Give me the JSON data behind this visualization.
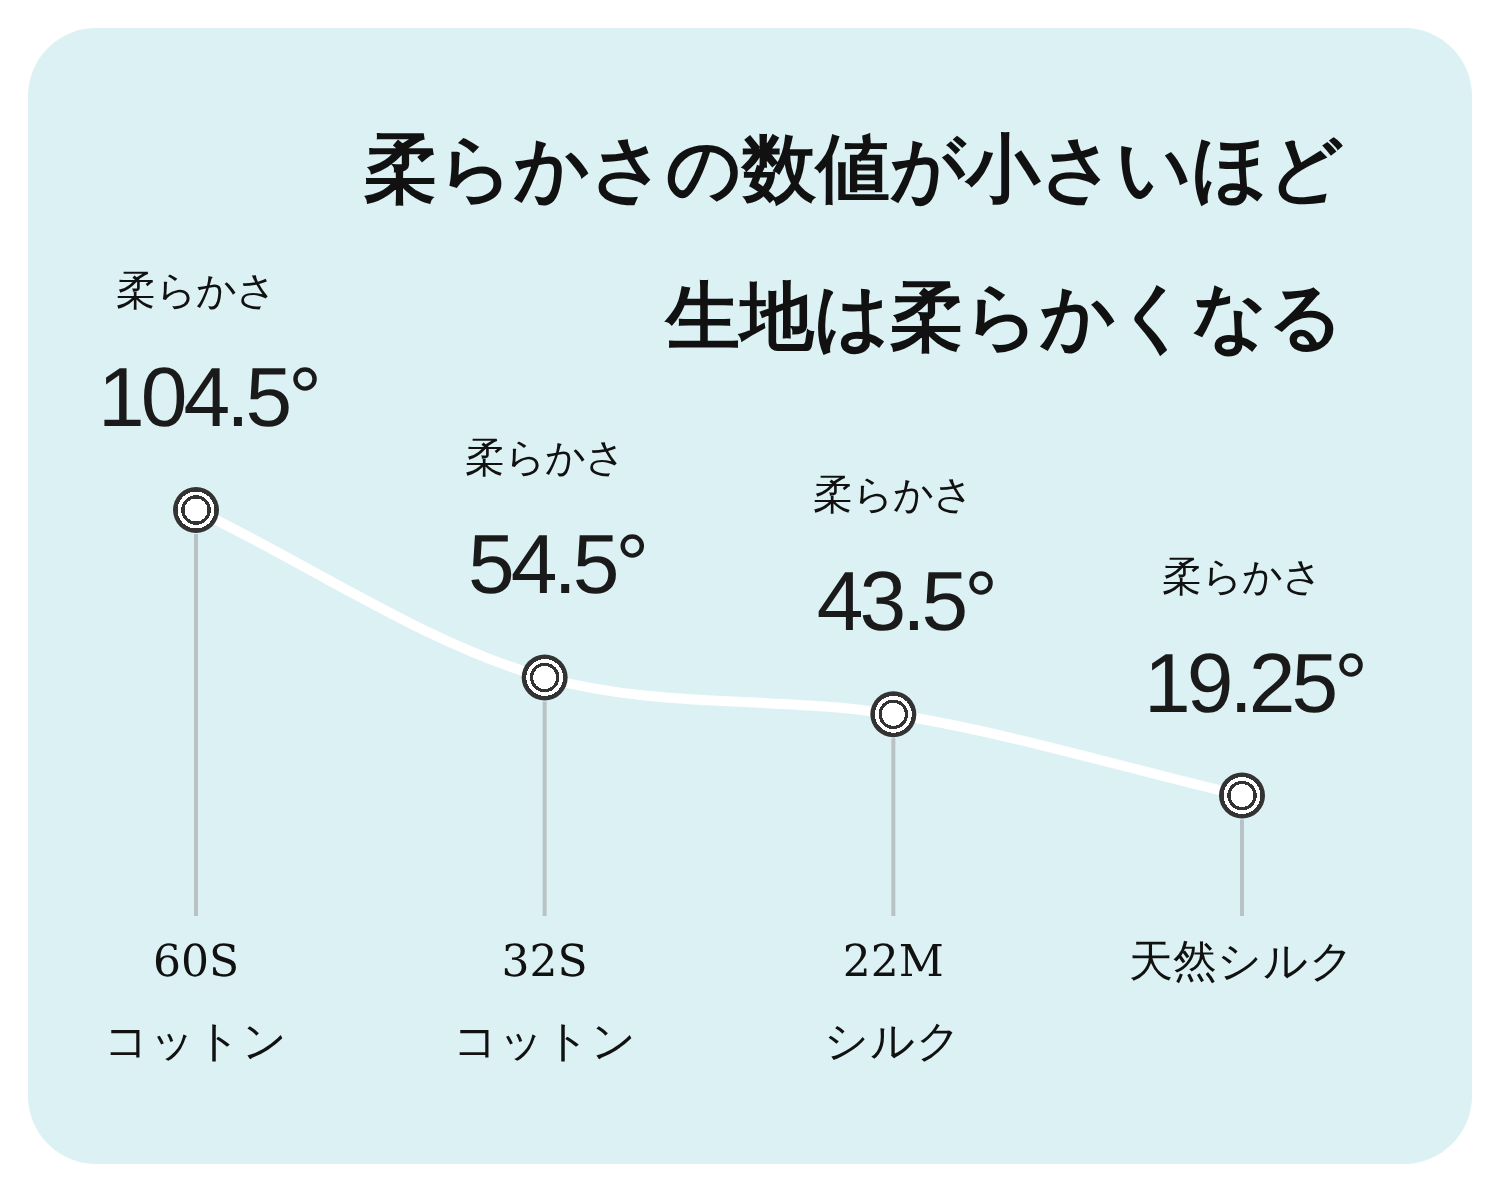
{
  "chart_data": {
    "type": "line",
    "title": "柔らかさの数値が小さいほど",
    "subtitle": "生地は柔らかくなる",
    "categories": [
      "60S コットン",
      "32S コットン",
      "22M シルク",
      "天然シルク"
    ],
    "values": [
      104.5,
      54.5,
      43.5,
      19.25
    ],
    "color": "#ffffff",
    "marker": "circle",
    "value_labels": [
      "104.5°",
      "54.5°",
      "43.5°",
      "19.25°"
    ],
    "annotations": [
      "柔らかさ",
      "柔らかさ",
      "柔らかさ",
      "柔らかさ"
    ]
  }
}
